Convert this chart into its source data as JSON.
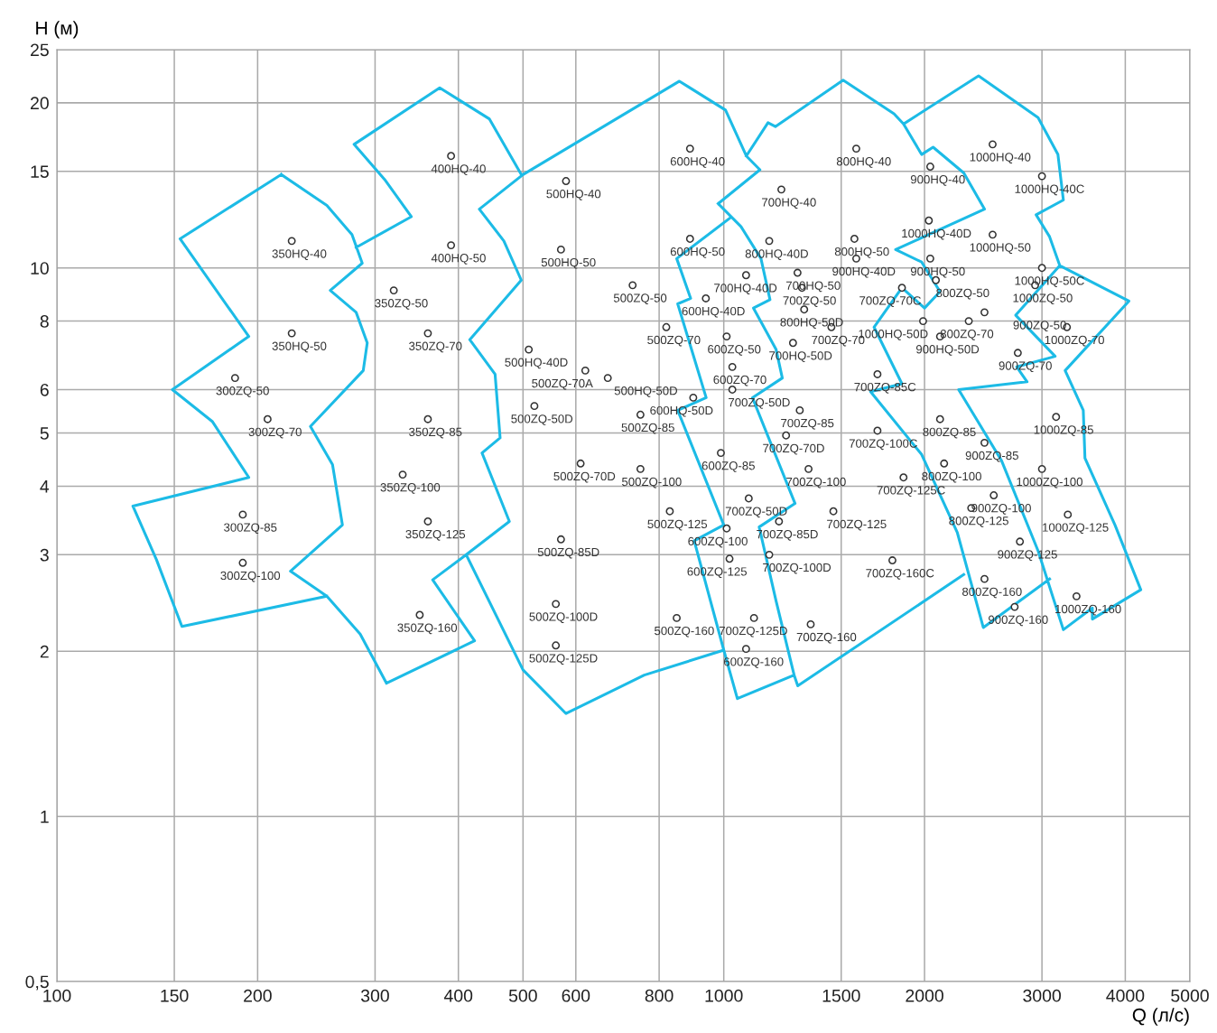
{
  "chart_data": {
    "type": "scatter",
    "log": "xy",
    "xlabel": "Q (л/с)",
    "ylabel": "H (м)",
    "grid": true,
    "xlim": [
      100,
      5000
    ],
    "xticks": [
      100,
      150,
      200,
      300,
      400,
      500,
      600,
      800,
      1000,
      1500,
      2000,
      3000,
      4000,
      5000
    ],
    "ylim": [
      0.5,
      25
    ],
    "yticks": [
      {
        "value": 0.5,
        "label": "0,5"
      },
      1,
      2,
      3,
      4,
      5,
      6,
      8,
      10,
      15,
      20,
      25
    ],
    "series": [
      {
        "type": "line",
        "color": "#1cbbe6",
        "x": [
          217,
          153,
          194,
          149,
          171,
          194,
          130,
          141,
          154,
          254,
          null,
          217,
          254,
          277,
          287,
          257,
          281,
          292,
          288,
          240,
          259,
          268,
          224,
          254,
          285,
          312,
          null,
          281,
          340,
          310,
          279,
          375,
          445,
          497,
          null,
          500,
          430,
          468,
          497,
          416,
          454,
          462,
          434,
          477,
          411,
          366,
          423,
          312,
          null,
          411,
          500,
          580,
          760,
          1000,
          null,
          500,
          858,
          1006,
          1081,
          1133,
          981,
          null,
          1019,
          850,
          892,
          853,
          941,
          853,
          1000,
          903,
          1000,
          null,
          981,
          1061,
          1137,
          1173,
          1108,
          1198,
          1224,
          1104,
          1279,
          1130,
          1198,
          1275,
          1048,
          1000,
          null,
          1275,
          1291,
          2290,
          null,
          1081,
          1165,
          1195,
          1510,
          1800,
          1860,
          1980,
          2060,
          2290,
          2460,
          1810,
          1980,
          2110,
          2000,
          1850,
          1680,
          1850,
          1660,
          1980,
          2240,
          2450,
          3080,
          null,
          1860,
          2410,
          2960,
          3170,
          3230,
          2940,
          3080,
          3190,
          4050,
          3250,
          3460,
          3480,
          3860,
          4220,
          3570,
          3570,
          3230,
          2960,
          2610,
          2250,
          2850,
          2750,
          3140,
          2740,
          3190
        ],
        "values": [
          14.8,
          11.3,
          7.5,
          6.0,
          5.25,
          4.15,
          3.68,
          2.94,
          2.22,
          2.52,
          null,
          14.8,
          13,
          11.5,
          10.2,
          9.1,
          8.3,
          7.3,
          6.5,
          5.14,
          4.38,
          3.4,
          2.8,
          2.52,
          2.15,
          1.75,
          null,
          10.9,
          12.4,
          14.5,
          16.8,
          21.3,
          18.7,
          14.8,
          null,
          14.8,
          12.8,
          11.2,
          9.5,
          7.4,
          6.4,
          4.9,
          4.6,
          3.45,
          3.0,
          2.7,
          2.09,
          1.75,
          null,
          3.0,
          1.85,
          1.54,
          1.81,
          2.01,
          null,
          14.8,
          21.9,
          19.4,
          16.0,
          15.1,
          13.1,
          null,
          12.3,
          10.4,
          8.8,
          8.6,
          5.8,
          5.5,
          3.4,
          3.18,
          2.01,
          null,
          13.1,
          11.9,
          10.4,
          8.75,
          8.45,
          7.1,
          6.3,
          5.8,
          3.72,
          3.37,
          2.47,
          1.81,
          1.64,
          2.01,
          null,
          1.81,
          1.73,
          2.76,
          null,
          16.0,
          18.4,
          18.1,
          22,
          19.1,
          18.3,
          16.1,
          16.6,
          14.9,
          12.8,
          10.8,
          10.25,
          9.05,
          8.45,
          9.2,
          7.8,
          6.15,
          5.95,
          4.57,
          3.29,
          2.21,
          2.71,
          null,
          18.3,
          22.4,
          18.8,
          16.1,
          13.3,
          12.5,
          11.4,
          10.1,
          8.7,
          6.5,
          5.5,
          4.5,
          3.4,
          2.59,
          2.29,
          2.4,
          2.19,
          3.05,
          4.45,
          6.0,
          6.2,
          6.6,
          6.9,
          8.2,
          10.1
        ]
      },
      {
        "color": "#333333",
        "marker": "circle",
        "x": [
          225,
          225,
          185,
          207,
          190,
          190,
          390,
          390,
          320,
          360,
          360,
          330,
          360,
          350,
          580,
          570,
          730,
          510,
          620,
          670,
          520,
          750,
          610,
          750,
          830,
          570,
          560,
          850,
          560,
          890,
          890,
          940,
          820,
          1010,
          1030,
          900,
          1030,
          990,
          1090,
          1010,
          1020,
          1080,
          1110,
          1170,
          1350,
          1210,
          1460,
          1340,
          1240,
          1300,
          1270,
          1450,
          1320,
          1310,
          1080,
          1290,
          1170,
          1220,
          1580,
          1570,
          1580,
          2040,
          2530,
          3000,
          2030,
          2530,
          2040,
          3000,
          2080,
          1850,
          2930,
          2460,
          1990,
          2330,
          2110,
          3270,
          2760,
          1700,
          1700,
          2110,
          3150,
          2460,
          2140,
          3000,
          1860,
          2540,
          2350,
          3280,
          2780,
          1790,
          2460,
          2730,
          3380
        ],
        "values": [
          11.2,
          7.6,
          6.3,
          5.3,
          3.55,
          2.9,
          16,
          11,
          9.1,
          7.6,
          5.3,
          4.2,
          3.45,
          2.33,
          14.4,
          10.8,
          9.3,
          7.1,
          6.5,
          6.3,
          5.6,
          5.4,
          4.4,
          4.3,
          3.6,
          3.2,
          2.44,
          2.3,
          2.05,
          16.5,
          11.3,
          8.8,
          7.8,
          7.5,
          6.6,
          5.8,
          6,
          4.6,
          3.8,
          3.35,
          2.95,
          2.02,
          2.3,
          3,
          2.24,
          3.45,
          3.6,
          4.3,
          4.95,
          5.5,
          7.3,
          7.8,
          8.4,
          9.2,
          9.7,
          9.8,
          11.2,
          13.9,
          16.5,
          11.3,
          10.4,
          15.3,
          16.8,
          14.7,
          12.2,
          11.5,
          10.4,
          10,
          9.5,
          9.2,
          9.3,
          8.3,
          8,
          8,
          7.5,
          7.8,
          7,
          6.4,
          5.05,
          5.3,
          5.35,
          4.8,
          4.4,
          4.3,
          4.15,
          3.85,
          3.65,
          3.55,
          3.17,
          2.93,
          2.71,
          2.41,
          2.52
        ]
      }
    ],
    "annotations": [
      {
        "text": "350HQ-40",
        "x": 225,
        "y": 11.2
      },
      {
        "text": "350HQ-50",
        "x": 225,
        "y": 7.6
      },
      {
        "text": "300ZQ-50",
        "x": 185,
        "y": 6.3
      },
      {
        "text": "300ZQ-70",
        "x": 207,
        "y": 5.3
      },
      {
        "text": "300ZQ-85",
        "x": 190,
        "y": 3.55
      },
      {
        "text": "300ZQ-100",
        "x": 190,
        "y": 2.9
      },
      {
        "text": "400HQ-40",
        "x": 390,
        "y": 16
      },
      {
        "text": "400HQ-50",
        "x": 390,
        "y": 11
      },
      {
        "text": "350ZQ-50",
        "x": 320,
        "y": 9.1
      },
      {
        "text": "350ZQ-70",
        "x": 360,
        "y": 7.6
      },
      {
        "text": "350ZQ-85",
        "x": 360,
        "y": 5.3
      },
      {
        "text": "350ZQ-100",
        "x": 330,
        "y": 4.2
      },
      {
        "text": "350ZQ-125",
        "x": 360,
        "y": 3.45
      },
      {
        "text": "350ZQ-160",
        "x": 350,
        "y": 2.33
      },
      {
        "text": "500HQ-40",
        "x": 580,
        "y": 14.4
      },
      {
        "text": "500HQ-50",
        "x": 570,
        "y": 10.8
      },
      {
        "text": "500ZQ-50",
        "x": 730,
        "y": 9.3
      },
      {
        "text": "500HQ-40D",
        "x": 510,
        "y": 7.1
      },
      {
        "text": "500ZQ-70A",
        "x": 620,
        "y": 6.5
      },
      {
        "text": "500HQ-50D",
        "x": 670,
        "y": 6.3
      },
      {
        "text": "500ZQ-50D",
        "x": 520,
        "y": 5.6
      },
      {
        "text": "500ZQ-85",
        "x": 750,
        "y": 5.4
      },
      {
        "text": "500ZQ-70D",
        "x": 610,
        "y": 4.4
      },
      {
        "text": "500ZQ-100",
        "x": 750,
        "y": 4.3
      },
      {
        "text": "500ZQ-125",
        "x": 830,
        "y": 3.6
      },
      {
        "text": "500ZQ-85D",
        "x": 570,
        "y": 3.2
      },
      {
        "text": "500ZQ-100D",
        "x": 560,
        "y": 2.44
      },
      {
        "text": "500ZQ-160",
        "x": 850,
        "y": 2.3
      },
      {
        "text": "500ZQ-125D",
        "x": 560,
        "y": 2.05
      },
      {
        "text": "600HQ-40",
        "x": 890,
        "y": 16.5
      },
      {
        "text": "600HQ-50",
        "x": 890,
        "y": 11.3
      },
      {
        "text": "600HQ-40D",
        "x": 940,
        "y": 8.8
      },
      {
        "text": "500ZQ-70",
        "x": 820,
        "y": 7.8
      },
      {
        "text": "600ZQ-50",
        "x": 1010,
        "y": 7.5
      },
      {
        "text": "600ZQ-70",
        "x": 1030,
        "y": 6.6
      },
      {
        "text": "600HQ-50D",
        "x": 900,
        "y": 5.8
      },
      {
        "text": "700ZQ-50D",
        "x": 1030,
        "y": 6
      },
      {
        "text": "600ZQ-85",
        "x": 990,
        "y": 4.6
      },
      {
        "text": "700ZQ-50D",
        "x": 1090,
        "y": 3.8
      },
      {
        "text": "600ZQ-100",
        "x": 1010,
        "y": 3.35
      },
      {
        "text": "600ZQ-125",
        "x": 1020,
        "y": 2.95
      },
      {
        "text": "600ZQ-160",
        "x": 1080,
        "y": 2.02
      },
      {
        "text": "700ZQ-125D",
        "x": 1110,
        "y": 2.3
      },
      {
        "text": "700ZQ-100D",
        "x": 1170,
        "y": 3
      },
      {
        "text": "700ZQ-160",
        "x": 1350,
        "y": 2.24
      },
      {
        "text": "700ZQ-85D",
        "x": 1210,
        "y": 3.45
      },
      {
        "text": "700ZQ-125",
        "x": 1460,
        "y": 3.6
      },
      {
        "text": "700ZQ-100",
        "x": 1340,
        "y": 4.3
      },
      {
        "text": "700ZQ-70D",
        "x": 1240,
        "y": 4.95
      },
      {
        "text": "700ZQ-85",
        "x": 1300,
        "y": 5.5
      },
      {
        "text": "700HQ-50D",
        "x": 1270,
        "y": 7.3
      },
      {
        "text": "700ZQ-70",
        "x": 1450,
        "y": 7.8
      },
      {
        "text": "800HQ-50D",
        "x": 1320,
        "y": 8.4
      },
      {
        "text": "700ZQ-50",
        "x": 1310,
        "y": 9.2
      },
      {
        "text": "700HQ-40D",
        "x": 1080,
        "y": 9.7
      },
      {
        "text": "700HQ-50",
        "x": 1290,
        "y": 9.8
      },
      {
        "text": "800HQ-40D",
        "x": 1170,
        "y": 11.2
      },
      {
        "text": "700HQ-40",
        "x": 1220,
        "y": 13.9
      },
      {
        "text": "800HQ-40",
        "x": 1580,
        "y": 16.5
      },
      {
        "text": "800HQ-50",
        "x": 1570,
        "y": 11.3
      },
      {
        "text": "900HQ-40D",
        "x": 1580,
        "y": 10.4
      },
      {
        "text": "900HQ-40",
        "x": 2040,
        "y": 15.3
      },
      {
        "text": "1000HQ-40",
        "x": 2530,
        "y": 16.8
      },
      {
        "text": "1000HQ-40C",
        "x": 3000,
        "y": 14.7
      },
      {
        "text": "1000HQ-40D",
        "x": 2030,
        "y": 12.2
      },
      {
        "text": "1000HQ-50",
        "x": 2530,
        "y": 11.5
      },
      {
        "text": "900HQ-50",
        "x": 2040,
        "y": 10.4
      },
      {
        "text": "1000HQ-50C",
        "x": 3000,
        "y": 10
      },
      {
        "text": "800ZQ-50",
        "x": 2080,
        "y": 9.5
      },
      {
        "text": "700ZQ-70C",
        "x": 1850,
        "y": 9.2
      },
      {
        "text": "1000ZQ-50",
        "x": 2930,
        "y": 9.3
      },
      {
        "text": "900ZQ-50",
        "x": 2460,
        "y": 8.3
      },
      {
        "text": "1000HQ-50D",
        "x": 1990,
        "y": 8
      },
      {
        "text": "800ZQ-70",
        "x": 2330,
        "y": 8
      },
      {
        "text": "900HQ-50D",
        "x": 2110,
        "y": 7.5
      },
      {
        "text": "1000ZQ-70",
        "x": 3270,
        "y": 7.8
      },
      {
        "text": "900ZQ-70",
        "x": 2760,
        "y": 7
      },
      {
        "text": "700ZQ-85C",
        "x": 1700,
        "y": 6.4
      },
      {
        "text": "700ZQ-100C",
        "x": 1700,
        "y": 5.05
      },
      {
        "text": "800ZQ-85",
        "x": 2110,
        "y": 5.3
      },
      {
        "text": "1000ZQ-85",
        "x": 3150,
        "y": 5.35
      },
      {
        "text": "900ZQ-85",
        "x": 2460,
        "y": 4.8
      },
      {
        "text": "800ZQ-100",
        "x": 2140,
        "y": 4.4
      },
      {
        "text": "1000ZQ-100",
        "x": 3000,
        "y": 4.3
      },
      {
        "text": "700ZQ-125C",
        "x": 1860,
        "y": 4.15
      },
      {
        "text": "900ZQ-100",
        "x": 2540,
        "y": 3.85
      },
      {
        "text": "800ZQ-125",
        "x": 2350,
        "y": 3.65
      },
      {
        "text": "1000ZQ-125",
        "x": 3280,
        "y": 3.55
      },
      {
        "text": "900ZQ-125",
        "x": 2780,
        "y": 3.17
      },
      {
        "text": "700ZQ-160C",
        "x": 1790,
        "y": 2.93
      },
      {
        "text": "800ZQ-160",
        "x": 2460,
        "y": 2.71
      },
      {
        "text": "900ZQ-160",
        "x": 2730,
        "y": 2.41
      },
      {
        "text": "1000ZQ-160",
        "x": 3380,
        "y": 2.52
      }
    ]
  }
}
